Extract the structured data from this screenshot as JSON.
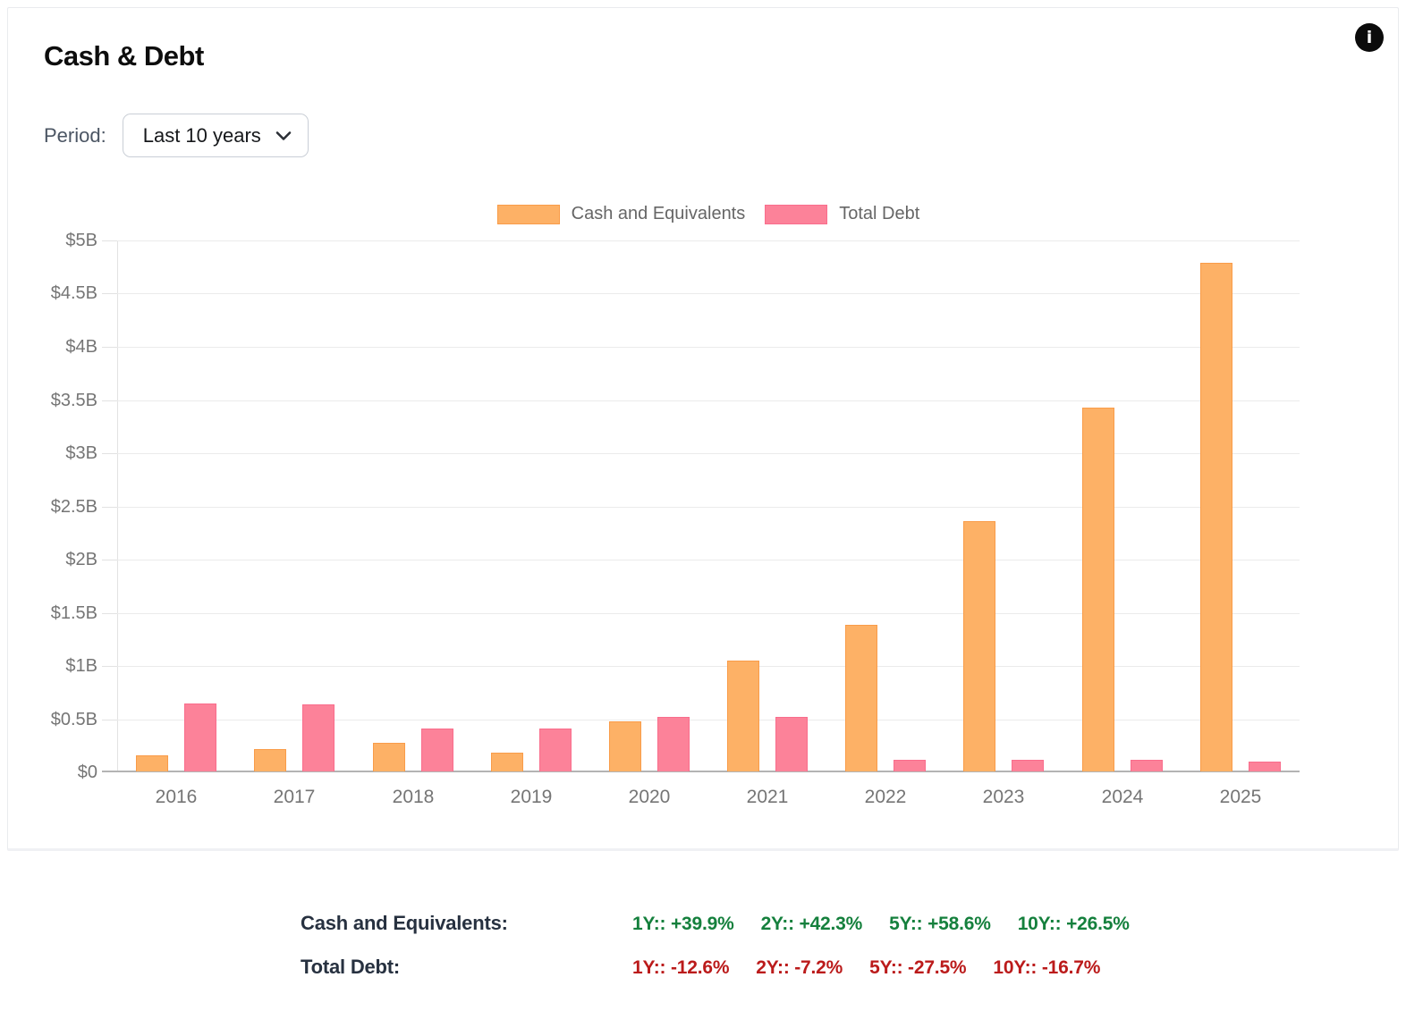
{
  "card": {
    "title": "Cash & Debt",
    "period_label": "Period:",
    "period_value": "Last 10 years",
    "info_icon_glyph": "i"
  },
  "chart_data": {
    "type": "bar",
    "title": "Cash & Debt",
    "unit": "USD billions",
    "categories": [
      "2016",
      "2017",
      "2018",
      "2019",
      "2020",
      "2021",
      "2022",
      "2023",
      "2024",
      "2025"
    ],
    "series": [
      {
        "name": "Cash and Equivalents",
        "color": "#fdb166",
        "border_color": "#f99c49",
        "values": [
          0.15,
          0.21,
          0.27,
          0.18,
          0.47,
          1.04,
          1.38,
          2.35,
          3.42,
          4.78
        ]
      },
      {
        "name": "Total Debt",
        "color": "#fc8299",
        "border_color": "#f96d8c",
        "values": [
          0.64,
          0.63,
          0.4,
          0.4,
          0.51,
          0.51,
          0.11,
          0.11,
          0.11,
          0.09
        ]
      }
    ],
    "xlabel": "",
    "ylabel": "",
    "ylim": [
      0,
      5
    ],
    "grid": true,
    "legend_position": "top",
    "yticks": [
      {
        "value": 5,
        "label": "$5B"
      },
      {
        "value": 4.5,
        "label": "$4.5B"
      },
      {
        "value": 4,
        "label": "$4B"
      },
      {
        "value": 3.5,
        "label": "$3.5B"
      },
      {
        "value": 3,
        "label": "$3B"
      },
      {
        "value": 2.5,
        "label": "$2.5B"
      },
      {
        "value": 2,
        "label": "$2B"
      },
      {
        "value": 1.5,
        "label": "$1.5B"
      },
      {
        "value": 1,
        "label": "$1B"
      },
      {
        "value": 0.5,
        "label": "$0.5B"
      },
      {
        "value": 0,
        "label": "$0"
      }
    ]
  },
  "stats": {
    "rows": [
      {
        "label": "Cash and Equivalents:",
        "color": "#15803d",
        "items": [
          {
            "period": "1Y::",
            "value": "+39.9%"
          },
          {
            "period": "2Y::",
            "value": "+42.3%"
          },
          {
            "period": "5Y::",
            "value": "+58.6%"
          },
          {
            "period": "10Y::",
            "value": "+26.5%"
          }
        ]
      },
      {
        "label": "Total Debt:",
        "color": "#bb1b1b",
        "items": [
          {
            "period": "1Y::",
            "value": "-12.6%"
          },
          {
            "period": "2Y::",
            "value": "-7.2%"
          },
          {
            "period": "5Y::",
            "value": "-27.5%"
          },
          {
            "period": "10Y::",
            "value": "-16.7%"
          }
        ]
      }
    ]
  }
}
